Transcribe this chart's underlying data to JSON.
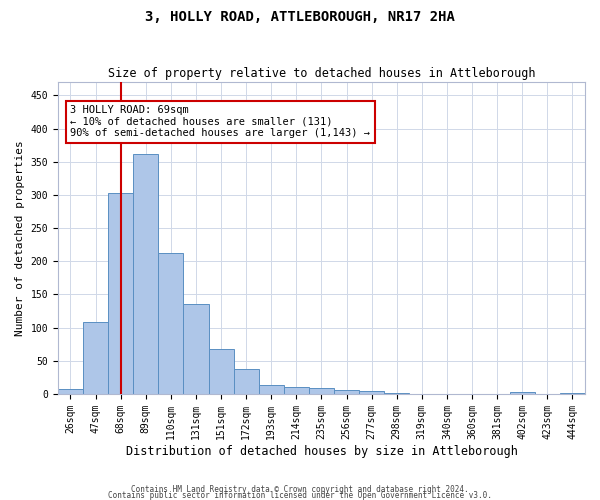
{
  "title": "3, HOLLY ROAD, ATTLEBOROUGH, NR17 2HA",
  "subtitle": "Size of property relative to detached houses in Attleborough",
  "xlabel": "Distribution of detached houses by size in Attleborough",
  "ylabel": "Number of detached properties",
  "categories": [
    "26sqm",
    "47sqm",
    "68sqm",
    "89sqm",
    "110sqm",
    "131sqm",
    "151sqm",
    "172sqm",
    "193sqm",
    "214sqm",
    "235sqm",
    "256sqm",
    "277sqm",
    "298sqm",
    "319sqm",
    "340sqm",
    "360sqm",
    "381sqm",
    "402sqm",
    "423sqm",
    "444sqm"
  ],
  "values": [
    7,
    108,
    303,
    362,
    212,
    136,
    68,
    38,
    13,
    10,
    9,
    6,
    5,
    1,
    0,
    0,
    0,
    0,
    3,
    0,
    2
  ],
  "bar_color": "#aec6e8",
  "bar_edge_color": "#5a8fc2",
  "vline_x": 2,
  "vline_color": "#cc0000",
  "annotation_line1": "3 HOLLY ROAD: 69sqm",
  "annotation_line2": "← 10% of detached houses are smaller (131)",
  "annotation_line3": "90% of semi-detached houses are larger (1,143) →",
  "annotation_box_color": "#ffffff",
  "annotation_box_edge": "#cc0000",
  "ylim": [
    0,
    470
  ],
  "yticks": [
    0,
    50,
    100,
    150,
    200,
    250,
    300,
    350,
    400,
    450
  ],
  "footer_line1": "Contains HM Land Registry data © Crown copyright and database right 2024.",
  "footer_line2": "Contains public sector information licensed under the Open Government Licence v3.0.",
  "background_color": "#ffffff",
  "grid_color": "#d0d8e8",
  "title_fontsize": 10,
  "subtitle_fontsize": 8.5,
  "ylabel_fontsize": 8,
  "xlabel_fontsize": 8.5,
  "tick_fontsize": 7,
  "annotation_fontsize": 7.5,
  "footer_fontsize": 5.5
}
